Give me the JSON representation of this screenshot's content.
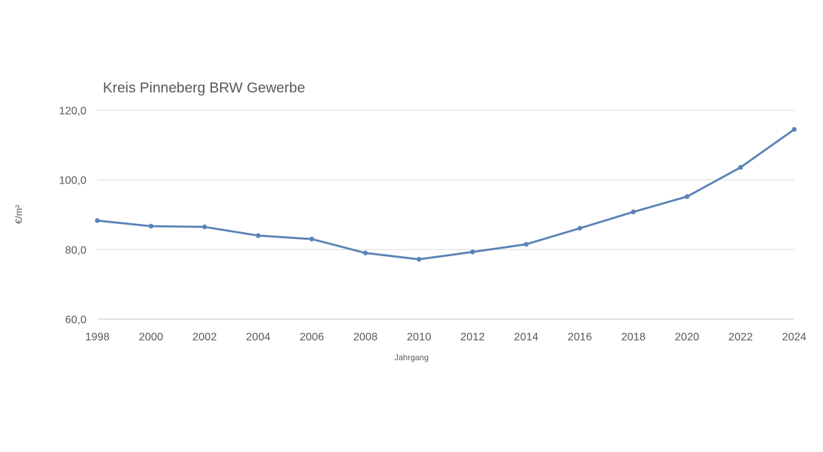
{
  "chart_data": {
    "type": "line",
    "title": "Kreis Pinneberg BRW Gewerbe",
    "xlabel": "Jahrgang",
    "ylabel": "€/m²",
    "xlim": [
      1998,
      2024
    ],
    "ylim": [
      60,
      120
    ],
    "x_ticks": [
      "1998",
      "2000",
      "2002",
      "2004",
      "2006",
      "2008",
      "2010",
      "2012",
      "2014",
      "2016",
      "2018",
      "2020",
      "2022",
      "2024"
    ],
    "y_ticks": [
      "60,0",
      "80,0",
      "100,0",
      "120,0"
    ],
    "y_tick_values": [
      60,
      80,
      100,
      120
    ],
    "grid": true,
    "legend": "none",
    "color": "#5a83b8",
    "series": [
      {
        "x": [
          1998,
          2000,
          2002,
          2004,
          2006,
          2008,
          2010,
          2012,
          2014,
          2016,
          2018,
          2020,
          2022,
          2024
        ],
        "values": [
          88.3,
          86.7,
          86.5,
          84.0,
          83.0,
          79.0,
          77.2,
          79.3,
          81.5,
          86.1,
          90.8,
          95.2,
          103.6,
          114.5
        ]
      }
    ]
  }
}
